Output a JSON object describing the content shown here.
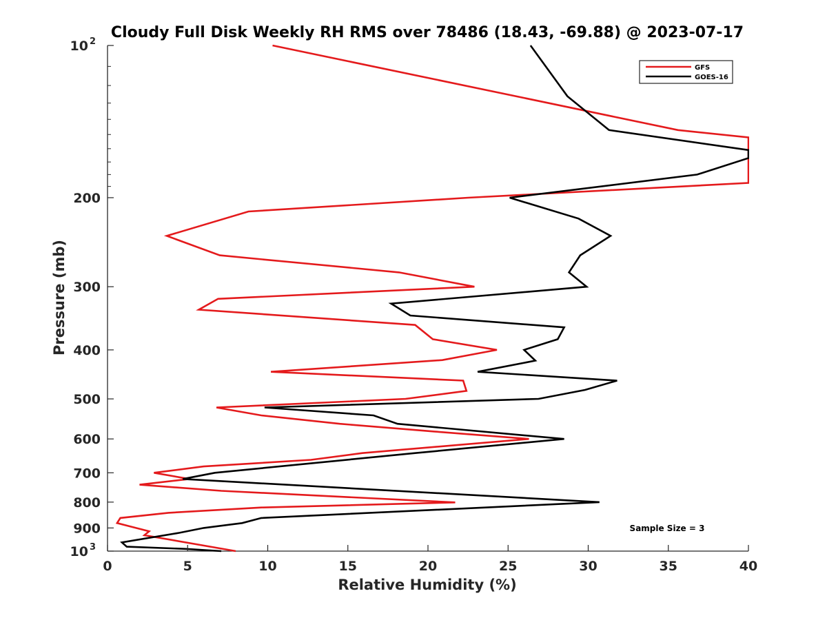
{
  "chart_data": {
    "type": "line",
    "title": "Cloudy Full Disk Weekly RH RMS over 78486 (18.43, -69.88) @ 2023-07-17",
    "xlabel": "Relative Humidity (%)",
    "ylabel": "Pressure (mb)",
    "xlim": [
      0,
      40
    ],
    "ylim": [
      100,
      1000
    ],
    "y_scale": "log",
    "y_reversed": true,
    "x_ticks": [
      "0",
      "5",
      "10",
      "15",
      "20",
      "25",
      "30",
      "35",
      "40"
    ],
    "y_ticks": [
      {
        "label": "10",
        "sup": "2",
        "value": 100
      },
      {
        "label": "200",
        "sup": "",
        "value": 200
      },
      {
        "label": "300",
        "sup": "",
        "value": 300
      },
      {
        "label": "400",
        "sup": "",
        "value": 400
      },
      {
        "label": "500",
        "sup": "",
        "value": 500
      },
      {
        "label": "600",
        "sup": "",
        "value": 600
      },
      {
        "label": "700",
        "sup": "",
        "value": 700
      },
      {
        "label": "800",
        "sup": "",
        "value": 800
      },
      {
        "label": "900",
        "sup": "",
        "value": 900
      },
      {
        "label": "10",
        "sup": "3",
        "value": 1000
      }
    ],
    "legend_position": "top-right",
    "annotation": "Sample Size = 3",
    "series": [
      {
        "name": "GFS",
        "color": "#e41a1c",
        "points": [
          [
            10.3,
            100
          ],
          [
            35.6,
            147
          ],
          [
            40.0,
            152
          ],
          [
            40.0,
            187
          ],
          [
            22.5,
            200
          ],
          [
            8.8,
            213
          ],
          [
            3.7,
            238
          ],
          [
            7.0,
            260
          ],
          [
            18.2,
            281
          ],
          [
            22.9,
            300
          ],
          [
            6.9,
            317
          ],
          [
            5.7,
            333
          ],
          [
            19.2,
            357
          ],
          [
            20.3,
            381
          ],
          [
            24.3,
            400
          ],
          [
            20.9,
            419
          ],
          [
            10.2,
            442
          ],
          [
            22.2,
            460
          ],
          [
            22.4,
            482
          ],
          [
            18.6,
            500
          ],
          [
            6.8,
            520
          ],
          [
            9.6,
            539
          ],
          [
            14.5,
            560
          ],
          [
            20.4,
            580
          ],
          [
            26.3,
            600
          ],
          [
            15.9,
            640
          ],
          [
            12.7,
            660
          ],
          [
            6.0,
            680
          ],
          [
            2.9,
            700
          ],
          [
            5.1,
            720
          ],
          [
            2.0,
            739
          ],
          [
            7.1,
            760
          ],
          [
            21.7,
            801
          ],
          [
            9.6,
            820
          ],
          [
            3.8,
            840
          ],
          [
            0.8,
            860
          ],
          [
            0.6,
            880
          ],
          [
            2.6,
            914
          ],
          [
            2.3,
            930
          ],
          [
            8.0,
            1000
          ]
        ]
      },
      {
        "name": "GOES-16",
        "color": "#000000",
        "points": [
          [
            26.4,
            100
          ],
          [
            28.7,
            126
          ],
          [
            31.3,
            147
          ],
          [
            40.0,
            161
          ],
          [
            40.0,
            167
          ],
          [
            36.8,
            180
          ],
          [
            25.1,
            200
          ],
          [
            29.4,
            220
          ],
          [
            31.4,
            238
          ],
          [
            29.5,
            260
          ],
          [
            28.8,
            281
          ],
          [
            29.9,
            300
          ],
          [
            17.7,
            324
          ],
          [
            18.9,
            342
          ],
          [
            28.5,
            361
          ],
          [
            28.1,
            381
          ],
          [
            26.0,
            400
          ],
          [
            26.7,
            420
          ],
          [
            23.1,
            442
          ],
          [
            31.8,
            460
          ],
          [
            29.8,
            480
          ],
          [
            26.9,
            500
          ],
          [
            9.8,
            520
          ],
          [
            16.6,
            539
          ],
          [
            18.1,
            560
          ],
          [
            28.5,
            600
          ],
          [
            19.2,
            640
          ],
          [
            6.7,
            700
          ],
          [
            4.7,
            720
          ],
          [
            30.7,
            800
          ],
          [
            9.6,
            860
          ],
          [
            8.4,
            880
          ],
          [
            6.0,
            900
          ],
          [
            4.5,
            920
          ],
          [
            0.9,
            961
          ],
          [
            1.2,
            980
          ],
          [
            4.9,
            990
          ],
          [
            7.1,
            1000
          ]
        ]
      }
    ]
  }
}
